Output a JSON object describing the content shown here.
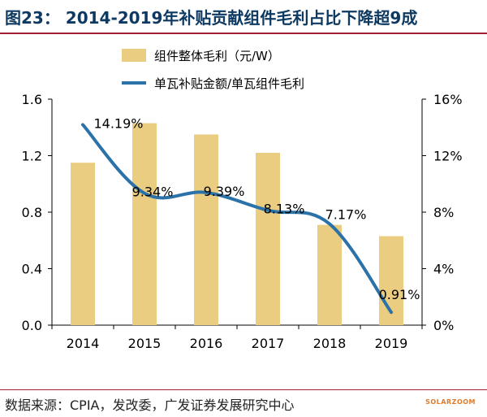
{
  "figure": {
    "title": "图23： 2014-2019年补贴贡献组件毛利占比下降超9成",
    "source": "数据来源：CPIA，发改委，广发证券发展研究中心",
    "watermark": "SOLARZOOM"
  },
  "chart_data": {
    "type": "bar+line",
    "categories": [
      "2014",
      "2015",
      "2016",
      "2017",
      "2018",
      "2019"
    ],
    "series": [
      {
        "name": "组件整体毛利（元/W）",
        "type": "bar",
        "axis": "left",
        "color": "#ebcd81",
        "values": [
          1.15,
          1.43,
          1.35,
          1.22,
          0.71,
          0.63
        ]
      },
      {
        "name": "单瓦补贴金额/单瓦组件毛利",
        "type": "line",
        "axis": "right",
        "color": "#2a72a8",
        "values": [
          14.19,
          9.34,
          9.39,
          8.13,
          7.17,
          0.91
        ],
        "labels": [
          "14.19%",
          "9.34%",
          "9.39%",
          "8.13%",
          "7.17%",
          "0.91%"
        ]
      }
    ],
    "left_axis": {
      "ylim": [
        0,
        1.6
      ],
      "ticks": [
        "0.0",
        "0.4",
        "0.8",
        "1.2",
        "1.6"
      ]
    },
    "right_axis": {
      "ylim": [
        0,
        16
      ],
      "ticks": [
        "0%",
        "4%",
        "8%",
        "12%",
        "16%"
      ]
    },
    "legend_placement": "top-center",
    "grid": false
  }
}
